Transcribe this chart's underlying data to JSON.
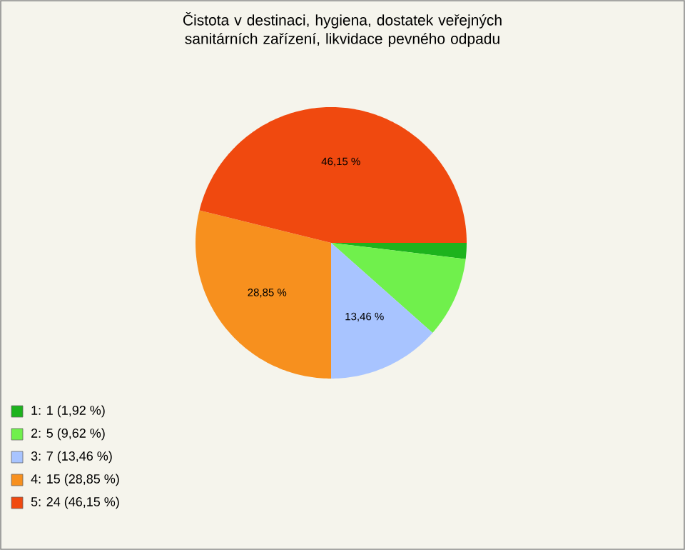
{
  "chart_data": {
    "type": "pie",
    "title": "Čistota v destinaci, hygiena, dostatek veřejných sanitárních zařízení, likvidace pevného odpadu",
    "categories": [
      "1: 1 (1,92 %)",
      "2: 5 (9,62 %)",
      "3: 7 (13,46 %)",
      "4: 15 (28,85 %)",
      "5: 24 (46,15 %)"
    ],
    "values": [
      1.92,
      9.62,
      13.46,
      28.85,
      46.15
    ],
    "value_labels": [
      null,
      null,
      "13,46 %",
      "28,85 %",
      "46,15 %"
    ],
    "colors": [
      "#1db31d",
      "#70f04c",
      "#a8c4ff",
      "#f7901e",
      "#f0490f"
    ],
    "legend": "bottom left"
  }
}
